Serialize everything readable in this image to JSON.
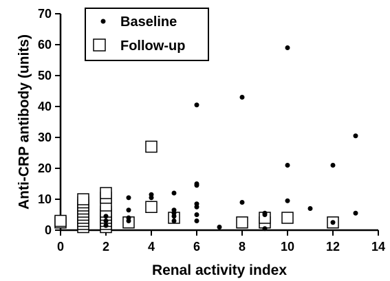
{
  "chart_data": {
    "type": "scatter",
    "xlabel": "Renal activity index",
    "ylabel": "Anti-CRP antibody (units)",
    "xlim": [
      0,
      14
    ],
    "ylim": [
      0,
      70
    ],
    "xticks": [
      0,
      2,
      4,
      6,
      8,
      10,
      12,
      14
    ],
    "yticks": [
      0,
      10,
      20,
      30,
      40,
      50,
      60,
      70
    ],
    "grid": false,
    "legend": "top-left",
    "series": [
      {
        "name": "Baseline",
        "marker": "filled-circle",
        "color": "#000000",
        "points": [
          [
            2,
            1.5
          ],
          [
            2,
            3
          ],
          [
            2,
            4.5
          ],
          [
            3,
            3
          ],
          [
            3,
            4
          ],
          [
            3,
            6.5
          ],
          [
            3,
            10.5
          ],
          [
            4,
            10.5
          ],
          [
            4,
            11.5
          ],
          [
            5,
            3
          ],
          [
            5,
            4.5
          ],
          [
            5,
            5.5
          ],
          [
            5,
            6.5
          ],
          [
            5,
            12
          ],
          [
            6,
            3
          ],
          [
            6,
            5
          ],
          [
            6,
            7.5
          ],
          [
            6,
            8.5
          ],
          [
            6,
            14.5
          ],
          [
            6,
            15
          ],
          [
            6,
            40.5
          ],
          [
            7,
            1
          ],
          [
            8,
            9
          ],
          [
            8,
            43
          ],
          [
            9,
            0.5
          ],
          [
            9,
            5
          ],
          [
            9,
            5.5
          ],
          [
            10,
            9.5
          ],
          [
            10,
            21
          ],
          [
            10,
            59
          ],
          [
            11,
            7
          ],
          [
            12,
            2.5
          ],
          [
            12,
            21
          ],
          [
            13,
            5.5
          ],
          [
            13,
            30.5
          ]
        ]
      },
      {
        "name": "Follow-up",
        "marker": "open-square",
        "color": "#000000",
        "points": [
          [
            0,
            2.5
          ],
          [
            0,
            3
          ],
          [
            1,
            1
          ],
          [
            1,
            2
          ],
          [
            1,
            3
          ],
          [
            1,
            4
          ],
          [
            1,
            5
          ],
          [
            1,
            6
          ],
          [
            1,
            7
          ],
          [
            1,
            8
          ],
          [
            1,
            9
          ],
          [
            1,
            10
          ],
          [
            2,
            1
          ],
          [
            2,
            2
          ],
          [
            2,
            3
          ],
          [
            2,
            4
          ],
          [
            2,
            5
          ],
          [
            2,
            6
          ],
          [
            2,
            8
          ],
          [
            2,
            10.5
          ],
          [
            2,
            12
          ],
          [
            3,
            2.5
          ],
          [
            4,
            7.5
          ],
          [
            4,
            27
          ],
          [
            5,
            4
          ],
          [
            8,
            2.5
          ],
          [
            9,
            2.5
          ],
          [
            9,
            4
          ],
          [
            10,
            4
          ],
          [
            12,
            2.5
          ]
        ]
      }
    ]
  }
}
